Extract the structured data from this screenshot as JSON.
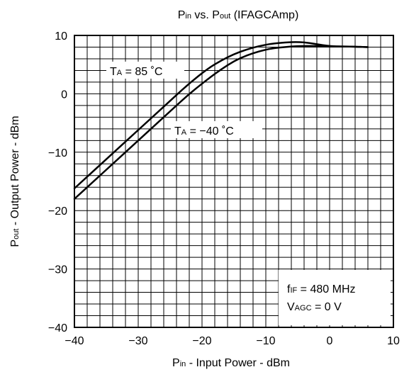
{
  "chart_data": {
    "type": "line",
    "title": {
      "prefix": "P",
      "sub1": "in",
      "mid": " vs. P",
      "sub2": "out",
      "suffix": " (IFAGCAmp)"
    },
    "xlabel": {
      "prefix": "P",
      "sub": "in",
      "rest": " -  Input Power  - dBm"
    },
    "ylabel": {
      "prefix": "P",
      "sub": "out",
      "rest": " -  Output Power  - dBm"
    },
    "xlim": [
      -40,
      10
    ],
    "ylim": [
      -40,
      10
    ],
    "x_major_ticks": [
      -40,
      -30,
      -20,
      -10,
      0,
      10
    ],
    "y_major_ticks": [
      -40,
      -30,
      -20,
      -10,
      0,
      10
    ],
    "x_tick_labels": [
      "−40",
      "−30",
      "−20",
      "−10",
      "0",
      "10"
    ],
    "y_tick_labels": [
      "−40",
      "−30",
      "−20",
      "−10",
      "0",
      "10"
    ],
    "grid": true,
    "series": [
      {
        "name": {
          "prefix": "T",
          "sub": "A",
          "rest": " = 85 ˚C"
        },
        "x": [
          -40,
          -37,
          -34,
          -31,
          -28,
          -25,
          -22,
          -19,
          -17,
          -15,
          -13,
          -11,
          -9,
          -7,
          -5,
          -3,
          -1,
          1,
          3,
          6
        ],
        "y": [
          -16.2,
          -13.2,
          -10.2,
          -7.2,
          -4.2,
          -1.2,
          1.8,
          4.4,
          5.7,
          6.8,
          7.6,
          8.2,
          8.6,
          8.8,
          8.9,
          8.7,
          8.3,
          8.1,
          8.1,
          8.0
        ]
      },
      {
        "name": {
          "prefix": "T",
          "sub": "A",
          "rest": " = −40 ˚C"
        },
        "x": [
          -40,
          -37,
          -34,
          -31,
          -28,
          -25,
          -22,
          -19,
          -17,
          -15,
          -13,
          -11,
          -9,
          -7,
          -5,
          -3,
          -1,
          1,
          3,
          6
        ],
        "y": [
          -18.0,
          -15.0,
          -12.0,
          -9.0,
          -6.0,
          -3.0,
          0.0,
          2.6,
          4.2,
          5.6,
          6.6,
          7.3,
          7.8,
          8.0,
          8.2,
          8.2,
          8.2,
          8.1,
          8.1,
          8.0
        ]
      }
    ],
    "annotations": [
      {
        "prefix": "f",
        "sub": "IF",
        "rest": " = 480 MHz"
      },
      {
        "prefix": "V",
        "sub": "AGC",
        "rest": " = 0 V"
      }
    ]
  }
}
